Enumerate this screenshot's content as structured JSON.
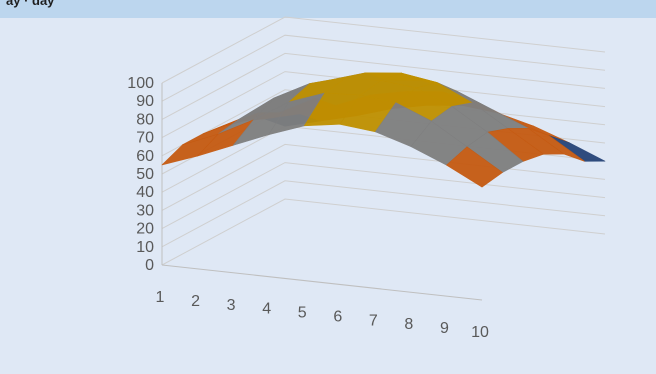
{
  "header": {
    "title": "ay · day"
  },
  "chart_data": {
    "type": "surface",
    "title": "ay · day",
    "x_ticks": [
      "1",
      "2",
      "3",
      "4",
      "5",
      "6",
      "7",
      "8",
      "9",
      "10"
    ],
    "z_ticks": [
      "0",
      "10",
      "20",
      "30",
      "40",
      "50",
      "60",
      "70",
      "80",
      "90",
      "100"
    ],
    "z_range": [
      0,
      100
    ],
    "band_colors": [
      "#264478",
      "#c55a11",
      "#7f7f7f",
      "#bf9000"
    ],
    "bands": [
      [
        0,
        50
      ],
      [
        50,
        70
      ],
      [
        70,
        90
      ],
      [
        90,
        100
      ]
    ],
    "grid": true,
    "rows": [
      [
        55,
        62,
        70,
        78,
        85,
        88,
        86,
        80,
        72,
        62
      ],
      [
        60,
        68,
        78,
        90,
        97,
        98,
        96,
        88,
        76,
        64
      ],
      [
        60,
        70,
        84,
        94,
        99,
        100,
        98,
        90,
        78,
        64
      ],
      [
        58,
        68,
        80,
        90,
        96,
        98,
        95,
        86,
        74,
        62
      ],
      [
        55,
        62,
        72,
        82,
        86,
        88,
        84,
        76,
        68,
        56
      ],
      [
        50,
        55,
        62,
        70,
        74,
        76,
        72,
        64,
        58,
        46
      ],
      [
        40,
        45,
        50,
        56,
        60,
        62,
        60,
        55,
        48,
        40
      ]
    ]
  }
}
